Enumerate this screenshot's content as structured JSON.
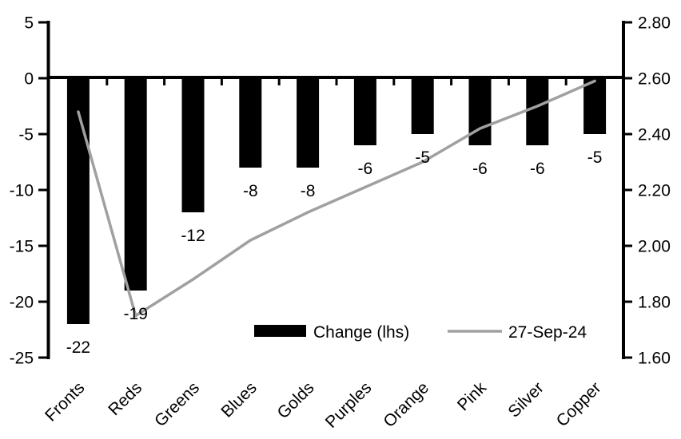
{
  "chart_data": {
    "type": "bar",
    "title": "",
    "categories": [
      "Fronts",
      "Reds",
      "Greens",
      "Blues",
      "Golds",
      "Purples",
      "Orange",
      "Pink",
      "Silver",
      "Copper"
    ],
    "series": [
      {
        "name": "Change (lhs)",
        "type": "bar",
        "axis": "left",
        "color": "#000000",
        "values": [
          -22,
          -19,
          -12,
          -8,
          -8,
          -6,
          -5,
          -6,
          -6,
          -5
        ],
        "data_labels": [
          "-22",
          "-19",
          "-12",
          "-8",
          "-8",
          "-6",
          "-5",
          "-6",
          "-6",
          "-5"
        ]
      },
      {
        "name": "27-Sep-24",
        "type": "line",
        "axis": "right",
        "color": "#a0a0a0",
        "values": [
          2.48,
          1.75,
          1.88,
          2.02,
          2.12,
          2.21,
          2.3,
          2.42,
          2.5,
          2.59
        ]
      }
    ],
    "left_axis": {
      "min": -25,
      "max": 5,
      "step": 5,
      "tick_labels": [
        "5",
        "0",
        "-5",
        "-10",
        "-15",
        "-20",
        "-25"
      ]
    },
    "right_axis": {
      "min": 1.6,
      "max": 2.8,
      "step": 0.2,
      "tick_labels": [
        "2.80",
        "2.60",
        "2.40",
        "2.20",
        "2.00",
        "1.80",
        "1.60"
      ]
    },
    "legend": {
      "position": "bottom-inside",
      "entries": [
        "Change (lhs)",
        "27-Sep-24"
      ]
    },
    "grid": false,
    "xlabel": "",
    "ylabel_left": "",
    "ylabel_right": ""
  },
  "colors": {
    "bar": "#000000",
    "line": "#a0a0a0",
    "axis": "#000000",
    "text": "#000000",
    "background": "#ffffff"
  }
}
